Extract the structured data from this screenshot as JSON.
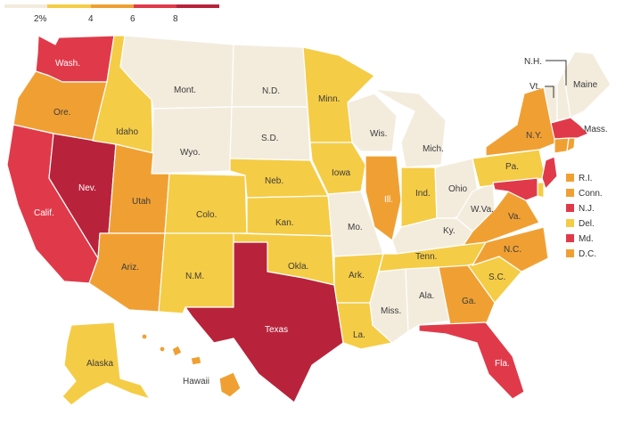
{
  "colors": {
    "bin1": "#f3ecdd",
    "bin2": "#f5cc45",
    "bin3": "#f0a033",
    "bin4": "#e03a4a",
    "bin5": "#b8233b"
  },
  "legend": {
    "ticks": [
      "2%",
      "4",
      "6",
      "8"
    ],
    "bins": [
      "bin1",
      "bin2",
      "bin3",
      "bin4",
      "bin5"
    ]
  },
  "states": [
    {
      "id": "wa",
      "label": "Wash.",
      "bin": "bin4"
    },
    {
      "id": "or",
      "label": "Ore.",
      "bin": "bin3"
    },
    {
      "id": "ca",
      "label": "Calif.",
      "bin": "bin4"
    },
    {
      "id": "nv",
      "label": "Nev.",
      "bin": "bin5"
    },
    {
      "id": "id",
      "label": "Idaho",
      "bin": "bin2"
    },
    {
      "id": "mt",
      "label": "Mont.",
      "bin": "bin1"
    },
    {
      "id": "wy",
      "label": "Wyo.",
      "bin": "bin1"
    },
    {
      "id": "ut",
      "label": "Utah",
      "bin": "bin3"
    },
    {
      "id": "az",
      "label": "Ariz.",
      "bin": "bin3"
    },
    {
      "id": "co",
      "label": "Colo.",
      "bin": "bin2"
    },
    {
      "id": "nm",
      "label": "N.M.",
      "bin": "bin2"
    },
    {
      "id": "nd",
      "label": "N.D.",
      "bin": "bin1"
    },
    {
      "id": "sd",
      "label": "S.D.",
      "bin": "bin1"
    },
    {
      "id": "ne",
      "label": "Neb.",
      "bin": "bin2"
    },
    {
      "id": "ks",
      "label": "Kan.",
      "bin": "bin2"
    },
    {
      "id": "ok",
      "label": "Okla.",
      "bin": "bin2"
    },
    {
      "id": "tx",
      "label": "Texas",
      "bin": "bin5"
    },
    {
      "id": "mn",
      "label": "Minn.",
      "bin": "bin2"
    },
    {
      "id": "ia",
      "label": "Iowa",
      "bin": "bin2"
    },
    {
      "id": "mo",
      "label": "Mo.",
      "bin": "bin1"
    },
    {
      "id": "ar",
      "label": "Ark.",
      "bin": "bin2"
    },
    {
      "id": "la",
      "label": "La.",
      "bin": "bin2"
    },
    {
      "id": "wi",
      "label": "Wis.",
      "bin": "bin1"
    },
    {
      "id": "il",
      "label": "Ill.",
      "bin": "bin3"
    },
    {
      "id": "mi",
      "label": "Mich.",
      "bin": "bin1"
    },
    {
      "id": "in",
      "label": "Ind.",
      "bin": "bin2"
    },
    {
      "id": "oh",
      "label": "Ohio",
      "bin": "bin1"
    },
    {
      "id": "ky",
      "label": "Ky.",
      "bin": "bin1"
    },
    {
      "id": "tn",
      "label": "Tenn.",
      "bin": "bin2"
    },
    {
      "id": "ms",
      "label": "Miss.",
      "bin": "bin1"
    },
    {
      "id": "al",
      "label": "Ala.",
      "bin": "bin1"
    },
    {
      "id": "ga",
      "label": "Ga.",
      "bin": "bin3"
    },
    {
      "id": "fl",
      "label": "Fla.",
      "bin": "bin4"
    },
    {
      "id": "sc",
      "label": "S.C.",
      "bin": "bin2"
    },
    {
      "id": "nc",
      "label": "N.C.",
      "bin": "bin3"
    },
    {
      "id": "va",
      "label": "Va.",
      "bin": "bin3"
    },
    {
      "id": "wv",
      "label": "W.Va.",
      "bin": "bin1"
    },
    {
      "id": "pa",
      "label": "Pa.",
      "bin": "bin2"
    },
    {
      "id": "ny",
      "label": "N.Y.",
      "bin": "bin3"
    },
    {
      "id": "vt",
      "label": "Vt.",
      "bin": "bin1"
    },
    {
      "id": "nh",
      "label": "N.H.",
      "bin": "bin1"
    },
    {
      "id": "me",
      "label": "Maine",
      "bin": "bin1"
    },
    {
      "id": "ma",
      "label": "Mass.",
      "bin": "bin4"
    },
    {
      "id": "ak",
      "label": "Alaska",
      "bin": "bin2"
    },
    {
      "id": "hi",
      "label": "Hawaii",
      "bin": "bin3"
    }
  ],
  "small_states": [
    {
      "id": "ri",
      "label": "R.I.",
      "bin": "bin3"
    },
    {
      "id": "ct",
      "label": "Conn.",
      "bin": "bin3"
    },
    {
      "id": "nj",
      "label": "N.J.",
      "bin": "bin4"
    },
    {
      "id": "de",
      "label": "Del.",
      "bin": "bin2"
    },
    {
      "id": "md",
      "label": "Md.",
      "bin": "bin4"
    },
    {
      "id": "dc",
      "label": "D.C.",
      "bin": "bin3"
    }
  ]
}
